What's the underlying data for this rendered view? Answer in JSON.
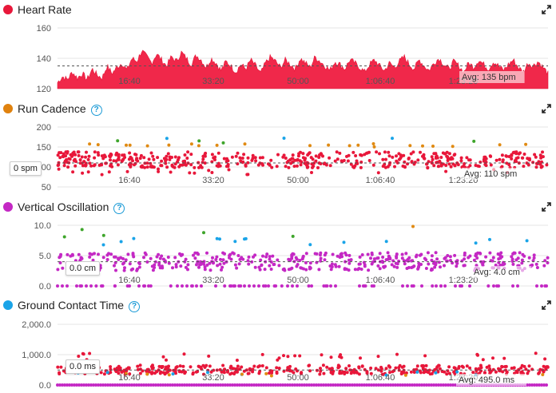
{
  "colors": {
    "heart_rate": "#e8173a",
    "cadence_orange": "#e08a12",
    "cadence_green": "#3ea52b",
    "cadence_blue": "#1aa4e8",
    "vo_purple": "#c428c4",
    "gct_blue": "#1aa4e8",
    "help": "#1a9ad6"
  },
  "panels": [
    {
      "id": "heart-rate",
      "title": "Heart Rate",
      "dot_color": "#e8173a",
      "has_help": false,
      "avg_label": "Avg: 135 bpm",
      "tooltip": ""
    },
    {
      "id": "run-cadence",
      "title": "Run Cadence",
      "dot_color": "#e0820e",
      "has_help": true,
      "avg_label": "Avg: 110 spm",
      "tooltip": "0 spm"
    },
    {
      "id": "vertical-oscillation",
      "title": "Vertical Oscillation",
      "dot_color": "#c428c4",
      "has_help": true,
      "avg_label": "Avg: 4.0 cm",
      "tooltip": "0.0 cm"
    },
    {
      "id": "ground-contact-time",
      "title": "Ground Contact Time",
      "dot_color": "#1aa4e8",
      "has_help": true,
      "avg_label": "Avg: 495.0 ms",
      "tooltip": "0.0 ms"
    }
  ],
  "chart_data": [
    {
      "type": "area",
      "title": "Heart Rate",
      "y_ticks": [
        "160",
        "140",
        "120"
      ],
      "ylim": [
        120,
        160
      ],
      "x_ticks": [
        "16:40",
        "33:20",
        "50:00",
        "1:06:40",
        "1:23:20"
      ],
      "avg": 135,
      "series": [
        {
          "values": [
            124,
            128,
            126,
            131,
            127,
            130,
            126,
            133,
            129,
            127,
            135,
            130,
            134,
            137,
            132,
            140,
            138,
            145,
            141,
            137,
            143,
            139,
            135,
            141,
            138,
            144,
            140,
            136,
            142,
            139,
            134,
            140,
            137,
            132,
            138,
            135,
            131,
            136,
            133,
            139,
            135,
            130,
            137,
            141,
            138,
            134,
            139,
            136,
            133,
            140,
            137,
            134,
            141,
            138,
            135,
            132,
            138,
            136,
            133,
            139,
            137,
            134,
            131,
            136,
            139,
            135,
            132,
            137,
            134,
            138,
            141,
            136,
            133,
            139,
            135,
            132,
            137,
            140,
            136,
            133,
            138,
            135,
            131,
            137,
            134,
            139,
            136,
            133,
            138,
            135,
            132,
            136,
            139,
            134,
            131,
            137,
            135,
            138,
            134,
            130
          ]
        }
      ]
    },
    {
      "type": "scatter",
      "title": "Run Cadence",
      "y_ticks": [
        "200",
        "150",
        "100",
        "50"
      ],
      "ylim": [
        50,
        200
      ],
      "x_ticks": [
        "16:40",
        "33:20",
        "50:00",
        "1:06:40",
        "1:23:20"
      ],
      "avg": 110
    },
    {
      "type": "scatter",
      "title": "Vertical Oscillation",
      "y_ticks": [
        "10.0",
        "5.0",
        "0.0"
      ],
      "ylim": [
        0,
        10
      ],
      "x_ticks": [
        "16:40",
        "33:20",
        "50:00",
        "1:06:40",
        "1:23:20"
      ],
      "avg": 4.0
    },
    {
      "type": "scatter",
      "title": "Ground Contact Time",
      "y_ticks": [
        "2,000.0",
        "1,000.0",
        "0.0"
      ],
      "ylim": [
        0,
        2000
      ],
      "x_ticks": [
        "16:40",
        "33:20",
        "50:00",
        "1:06:40",
        "1:23:20"
      ],
      "avg": 495.0
    }
  ]
}
